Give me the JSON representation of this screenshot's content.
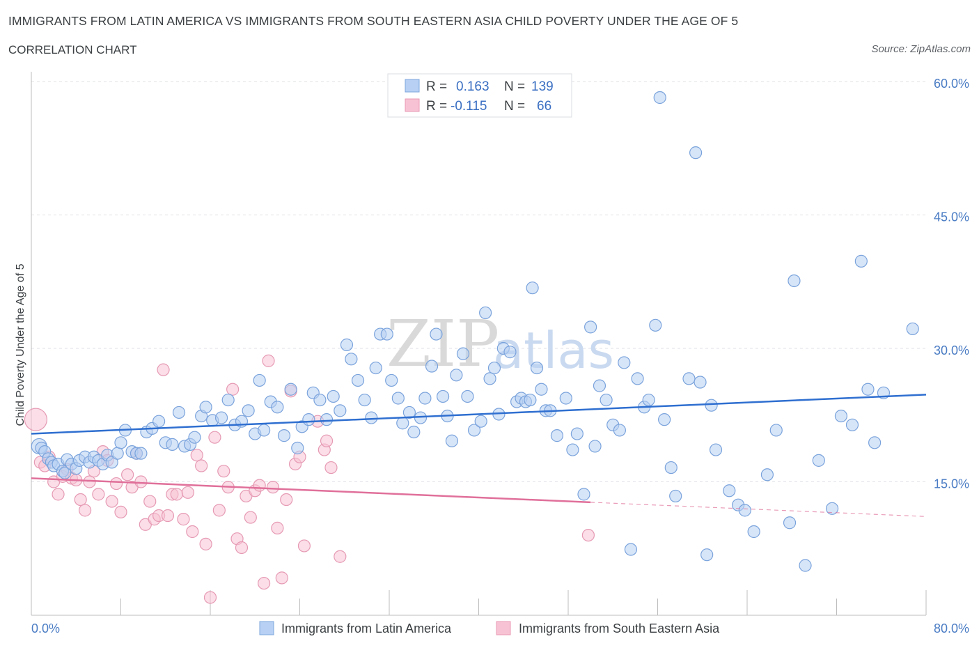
{
  "header": {
    "title": "IMMIGRANTS FROM LATIN AMERICA VS IMMIGRANTS FROM SOUTH EASTERN ASIA CHILD POVERTY UNDER THE AGE OF 5",
    "subtitle": "CORRELATION CHART",
    "source": "Source: ZipAtlas.com"
  },
  "watermark": {
    "zip": "ZIP",
    "atlas": "atlas"
  },
  "legend_box": {
    "rows": [
      {
        "r_label": "R =",
        "r_value": "0.163",
        "n_label": "N =",
        "n_value": "139",
        "color": "#b7d0f3",
        "stroke": "#7fa7de"
      },
      {
        "r_label": "R =",
        "r_value": "-0.115",
        "n_label": "N =",
        "n_value": "66",
        "color": "#f7c3d4",
        "stroke": "#e99ab5"
      }
    ]
  },
  "colors": {
    "blue_fill": "#b7d0f3",
    "blue_stroke": "#7aa3dc",
    "blue_line": "#2f6fd0",
    "pink_fill": "#f7c3d4",
    "pink_stroke": "#e69ab4",
    "pink_line": "#e0709a",
    "grid": "#dfe1e5",
    "axis": "#bdbdbd",
    "tick_text": "#4a7cc4"
  },
  "chart_data": {
    "type": "scatter",
    "title": "IMMIGRANTS FROM LATIN AMERICA VS IMMIGRANTS FROM SOUTH EASTERN ASIA CHILD POVERTY UNDER THE AGE OF 5",
    "xlabel": "",
    "ylabel": "Child Poverty Under the Age of 5",
    "xlim": [
      0,
      80
    ],
    "ylim": [
      0,
      60
    ],
    "x_tick_labels": {
      "min": "0.0%",
      "max": "80.0%"
    },
    "y_ticks": [
      {
        "value": 15,
        "label": "15.0%"
      },
      {
        "value": 30,
        "label": "30.0%"
      },
      {
        "value": 45,
        "label": "45.0%"
      },
      {
        "value": 60,
        "label": "60.0%"
      }
    ],
    "grid": true,
    "legend_position": "bottom",
    "series": [
      {
        "name": "Immigrants from Latin America",
        "color": "blue",
        "R": 0.163,
        "N": 139,
        "trend": {
          "x0": 0,
          "y0": 20.4,
          "x1": 80,
          "y1": 24.8
        },
        "points": [
          [
            0.7,
            19.0
          ],
          [
            0.9,
            18.8
          ],
          [
            1.2,
            18.4
          ],
          [
            1.5,
            17.6
          ],
          [
            1.8,
            17.2
          ],
          [
            2.0,
            16.8
          ],
          [
            2.4,
            17.0
          ],
          [
            2.8,
            16.2
          ],
          [
            3.0,
            16.0
          ],
          [
            3.2,
            17.5
          ],
          [
            3.6,
            17.0
          ],
          [
            4.0,
            16.5
          ],
          [
            4.3,
            17.4
          ],
          [
            4.8,
            17.8
          ],
          [
            5.2,
            17.2
          ],
          [
            5.6,
            17.8
          ],
          [
            6.0,
            17.4
          ],
          [
            6.4,
            17.0
          ],
          [
            6.8,
            18.0
          ],
          [
            7.2,
            17.2
          ],
          [
            7.7,
            18.2
          ],
          [
            8.0,
            19.4
          ],
          [
            8.4,
            20.8
          ],
          [
            9.0,
            18.4
          ],
          [
            9.4,
            18.2
          ],
          [
            9.8,
            18.2
          ],
          [
            10.3,
            20.6
          ],
          [
            10.8,
            21.0
          ],
          [
            11.4,
            21.8
          ],
          [
            12.0,
            19.4
          ],
          [
            12.6,
            19.2
          ],
          [
            13.2,
            22.8
          ],
          [
            13.7,
            19.0
          ],
          [
            14.2,
            19.2
          ],
          [
            14.6,
            20.0
          ],
          [
            15.2,
            22.4
          ],
          [
            15.6,
            23.4
          ],
          [
            16.2,
            21.9
          ],
          [
            17.0,
            22.2
          ],
          [
            17.6,
            24.2
          ],
          [
            18.2,
            21.4
          ],
          [
            18.8,
            21.8
          ],
          [
            19.4,
            23.0
          ],
          [
            20.0,
            20.4
          ],
          [
            20.4,
            26.4
          ],
          [
            20.8,
            20.8
          ],
          [
            21.4,
            24.0
          ],
          [
            22.0,
            23.4
          ],
          [
            22.6,
            20.2
          ],
          [
            23.2,
            25.4
          ],
          [
            23.8,
            18.8
          ],
          [
            24.2,
            21.2
          ],
          [
            24.8,
            22.0
          ],
          [
            25.2,
            25.0
          ],
          [
            25.8,
            24.2
          ],
          [
            26.4,
            22.0
          ],
          [
            27.0,
            24.6
          ],
          [
            27.6,
            23.0
          ],
          [
            28.2,
            30.4
          ],
          [
            28.6,
            28.8
          ],
          [
            29.2,
            26.4
          ],
          [
            29.8,
            24.2
          ],
          [
            30.4,
            22.2
          ],
          [
            30.8,
            27.8
          ],
          [
            31.2,
            31.6
          ],
          [
            31.8,
            31.6
          ],
          [
            32.2,
            26.4
          ],
          [
            32.8,
            24.4
          ],
          [
            33.2,
            21.6
          ],
          [
            33.8,
            22.8
          ],
          [
            34.2,
            20.6
          ],
          [
            34.8,
            22.2
          ],
          [
            35.2,
            24.4
          ],
          [
            35.8,
            28.0
          ],
          [
            36.2,
            31.6
          ],
          [
            36.8,
            24.6
          ],
          [
            37.2,
            22.4
          ],
          [
            37.6,
            19.6
          ],
          [
            38.0,
            27.0
          ],
          [
            38.6,
            29.4
          ],
          [
            39.0,
            24.6
          ],
          [
            39.6,
            20.8
          ],
          [
            40.2,
            21.8
          ],
          [
            40.6,
            34.0
          ],
          [
            41.0,
            26.6
          ],
          [
            41.4,
            27.8
          ],
          [
            41.8,
            22.6
          ],
          [
            42.2,
            30.0
          ],
          [
            42.8,
            29.6
          ],
          [
            43.4,
            24.0
          ],
          [
            43.8,
            24.4
          ],
          [
            44.2,
            24.0
          ],
          [
            44.6,
            24.2
          ],
          [
            44.8,
            36.8
          ],
          [
            45.2,
            27.8
          ],
          [
            45.6,
            25.4
          ],
          [
            46.0,
            23.0
          ],
          [
            46.4,
            23.0
          ],
          [
            47.0,
            20.2
          ],
          [
            47.8,
            24.4
          ],
          [
            48.4,
            18.6
          ],
          [
            48.8,
            20.4
          ],
          [
            49.4,
            13.6
          ],
          [
            50.0,
            32.4
          ],
          [
            50.4,
            19.0
          ],
          [
            50.8,
            25.8
          ],
          [
            51.4,
            24.2
          ],
          [
            52.0,
            21.4
          ],
          [
            52.6,
            20.8
          ],
          [
            53.0,
            28.4
          ],
          [
            53.6,
            7.4
          ],
          [
            54.2,
            26.6
          ],
          [
            54.8,
            23.4
          ],
          [
            55.2,
            24.2
          ],
          [
            55.8,
            32.6
          ],
          [
            56.2,
            58.2
          ],
          [
            56.6,
            22.0
          ],
          [
            57.2,
            16.6
          ],
          [
            57.6,
            13.4
          ],
          [
            58.8,
            26.6
          ],
          [
            59.4,
            52.0
          ],
          [
            59.8,
            26.2
          ],
          [
            60.4,
            6.8
          ],
          [
            60.8,
            23.6
          ],
          [
            61.2,
            18.6
          ],
          [
            62.4,
            14.0
          ],
          [
            63.2,
            12.4
          ],
          [
            63.8,
            11.8
          ],
          [
            64.6,
            9.4
          ],
          [
            65.8,
            15.8
          ],
          [
            66.6,
            20.8
          ],
          [
            67.8,
            10.4
          ],
          [
            68.2,
            37.6
          ],
          [
            69.2,
            5.6
          ],
          [
            70.4,
            17.4
          ],
          [
            71.6,
            12.0
          ],
          [
            72.4,
            22.4
          ],
          [
            73.4,
            21.4
          ],
          [
            74.2,
            39.8
          ],
          [
            74.8,
            25.4
          ],
          [
            75.4,
            19.4
          ],
          [
            76.2,
            25.0
          ],
          [
            78.8,
            32.2
          ]
        ]
      },
      {
        "name": "Immigrants from South Eastern Asia",
        "color": "pink",
        "R": -0.115,
        "N": 66,
        "trend": {
          "x0": 0,
          "y0": 15.4,
          "x1": 50,
          "y1": 12.7,
          "dashed_to": {
            "x": 80,
            "y": 11.1
          }
        },
        "points": [
          [
            0.4,
            22.0
          ],
          [
            0.8,
            17.2
          ],
          [
            1.2,
            16.8
          ],
          [
            1.6,
            17.8
          ],
          [
            2.0,
            15.0
          ],
          [
            2.4,
            13.6
          ],
          [
            2.8,
            15.6
          ],
          [
            3.2,
            16.4
          ],
          [
            3.6,
            15.4
          ],
          [
            4.0,
            15.2
          ],
          [
            4.4,
            13.0
          ],
          [
            4.8,
            11.8
          ],
          [
            5.2,
            15.0
          ],
          [
            5.6,
            16.2
          ],
          [
            6.0,
            13.6
          ],
          [
            6.4,
            18.4
          ],
          [
            6.8,
            17.4
          ],
          [
            7.2,
            12.8
          ],
          [
            7.6,
            14.8
          ],
          [
            8.0,
            11.6
          ],
          [
            8.6,
            15.8
          ],
          [
            9.0,
            14.4
          ],
          [
            9.4,
            18.2
          ],
          [
            9.8,
            15.0
          ],
          [
            10.2,
            10.2
          ],
          [
            10.6,
            12.8
          ],
          [
            11.0,
            10.8
          ],
          [
            11.4,
            11.2
          ],
          [
            11.8,
            27.6
          ],
          [
            12.2,
            11.2
          ],
          [
            12.6,
            13.6
          ],
          [
            13.0,
            13.6
          ],
          [
            13.6,
            10.8
          ],
          [
            14.0,
            13.8
          ],
          [
            14.4,
            9.4
          ],
          [
            14.8,
            18.0
          ],
          [
            15.2,
            16.8
          ],
          [
            15.6,
            8.0
          ],
          [
            16.0,
            2.0
          ],
          [
            16.4,
            20.0
          ],
          [
            16.8,
            11.8
          ],
          [
            17.2,
            16.2
          ],
          [
            17.6,
            14.4
          ],
          [
            18.0,
            25.4
          ],
          [
            18.4,
            8.6
          ],
          [
            18.8,
            7.6
          ],
          [
            19.2,
            13.4
          ],
          [
            19.6,
            11.0
          ],
          [
            20.0,
            14.0
          ],
          [
            20.4,
            14.6
          ],
          [
            20.8,
            3.6
          ],
          [
            21.2,
            28.6
          ],
          [
            21.6,
            14.4
          ],
          [
            22.0,
            9.8
          ],
          [
            22.4,
            4.2
          ],
          [
            22.8,
            13.0
          ],
          [
            23.2,
            25.2
          ],
          [
            23.6,
            17.0
          ],
          [
            24.0,
            17.8
          ],
          [
            24.4,
            7.8
          ],
          [
            25.6,
            21.8
          ],
          [
            26.2,
            18.6
          ],
          [
            26.4,
            19.6
          ],
          [
            26.8,
            16.6
          ],
          [
            27.6,
            6.6
          ],
          [
            49.8,
            9.0
          ]
        ]
      }
    ]
  },
  "bottom_legend": {
    "blue_label": "Immigrants from Latin America",
    "pink_label": "Immigrants from South Eastern Asia"
  }
}
